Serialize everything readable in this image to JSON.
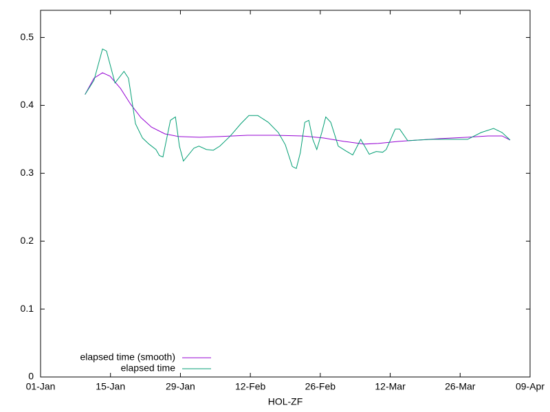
{
  "chart_data": {
    "type": "line",
    "xlabel": "HOL-ZF",
    "xlim": [
      0,
      98
    ],
    "xticks": [
      {
        "value": 0,
        "label": "01-Jan"
      },
      {
        "value": 14,
        "label": "15-Jan"
      },
      {
        "value": 28,
        "label": "29-Jan"
      },
      {
        "value": 42,
        "label": "12-Feb"
      },
      {
        "value": 56,
        "label": "26-Feb"
      },
      {
        "value": 70,
        "label": "12-Mar"
      },
      {
        "value": 84,
        "label": "26-Mar"
      },
      {
        "value": 98,
        "label": "09-Apr"
      }
    ],
    "ylim": [
      0,
      0.54
    ],
    "yticks": [
      0,
      0.1,
      0.2,
      0.3,
      0.4,
      0.5
    ],
    "legend": "bottom-left",
    "series": [
      {
        "name": "elapsed time (smooth)",
        "color": "#9400d3",
        "x": [
          8.9,
          10.7,
          12.4,
          13.9,
          16.0,
          18.0,
          20.1,
          22.2,
          24.9,
          27.7,
          31.8,
          35.9,
          41.4,
          46.9,
          52.4,
          56.6,
          60.7,
          64.8,
          67.6,
          71.7,
          75.8,
          80.0,
          85.5,
          89.6,
          92.4,
          94.0
        ],
        "values": [
          0.416,
          0.44,
          0.448,
          0.443,
          0.425,
          0.402,
          0.382,
          0.368,
          0.358,
          0.354,
          0.353,
          0.354,
          0.356,
          0.356,
          0.355,
          0.352,
          0.347,
          0.343,
          0.344,
          0.347,
          0.349,
          0.351,
          0.353,
          0.355,
          0.355,
          0.349
        ]
      },
      {
        "name": "elapsed time",
        "color": "#009e73",
        "x": [
          8.9,
          10.7,
          12.4,
          13.2,
          14.9,
          16.7,
          17.6,
          19.0,
          20.4,
          21.7,
          23.1,
          23.8,
          24.5,
          26.0,
          27.0,
          27.8,
          28.6,
          30.7,
          31.7,
          33.2,
          34.6,
          35.9,
          38.0,
          40.1,
          41.7,
          43.5,
          45.6,
          47.6,
          49.0,
          50.4,
          51.2,
          52.0,
          52.9,
          53.7,
          54.5,
          55.3,
          56.3,
          57.1,
          58.1,
          59.6,
          61.1,
          62.5,
          64.1,
          65.8,
          67.2,
          68.5,
          69.2,
          71.0,
          71.9,
          73.5,
          75.8,
          78.6,
          82.7,
          85.5,
          88.2,
          90.7,
          92.4,
          94.0
        ],
        "values": [
          0.416,
          0.437,
          0.483,
          0.48,
          0.433,
          0.45,
          0.44,
          0.373,
          0.352,
          0.343,
          0.335,
          0.326,
          0.324,
          0.378,
          0.383,
          0.34,
          0.318,
          0.337,
          0.34,
          0.335,
          0.334,
          0.34,
          0.355,
          0.373,
          0.385,
          0.385,
          0.375,
          0.36,
          0.342,
          0.31,
          0.307,
          0.33,
          0.375,
          0.378,
          0.35,
          0.335,
          0.36,
          0.383,
          0.375,
          0.34,
          0.333,
          0.327,
          0.35,
          0.328,
          0.332,
          0.331,
          0.335,
          0.365,
          0.365,
          0.348,
          0.349,
          0.35,
          0.35,
          0.35,
          0.36,
          0.366,
          0.36,
          0.349
        ]
      }
    ]
  }
}
